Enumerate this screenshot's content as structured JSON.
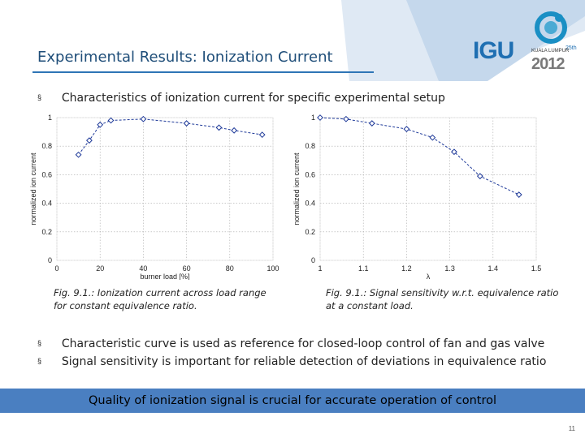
{
  "slide": {
    "title": "Experimental Results: Ionization Current",
    "bullet_top": "Characteristics of ionization current for specific experimental setup",
    "bullets_bottom": [
      "Characteristic curve is used as reference for closed-loop control of fan and gas valve",
      "Signal sensitivity is important for reliable detection of deviations in equivalence ratio"
    ],
    "bullet_marker": "§",
    "banner": "Quality of ionization signal is crucial for accurate operation of control",
    "page_number": "11",
    "colors": {
      "title": "#1f4e79",
      "banner": "#4a7fc1",
      "series": "#1f3a99"
    }
  },
  "logos": {
    "igu": {
      "mark": "IGU",
      "sub": "INTERNATIONAL GAS UNION / UNION INTERNATIONALE DE L'INDUSTRIE DU GAZ"
    },
    "wgc": {
      "place": "KUALA LUMPUR",
      "year": "2012",
      "edition": "25th"
    }
  },
  "captions": [
    [
      "Fig. 9.1.: Ionization current across load range",
      "for constant equivalence ratio."
    ],
    [
      "Fig. 9.1.: Signal sensitivity w.r.t. equivalence ratio",
      "at a constant load."
    ]
  ],
  "chart_data": [
    {
      "type": "line",
      "xlabel": "burner load [%]",
      "ylabel": "normalized ion current",
      "xlim": [
        0,
        100
      ],
      "ylim": [
        0,
        1
      ],
      "xticks": [
        0,
        20,
        40,
        60,
        80,
        100
      ],
      "yticks": [
        0,
        0.2,
        0.4,
        0.6,
        0.8,
        1
      ],
      "xtick_labels": [
        "0",
        "20",
        "40",
        "60",
        "80",
        "100"
      ],
      "ytick_labels": [
        "0",
        "0.2",
        "0.4",
        "0.6",
        "0.8",
        "1"
      ],
      "grid": true,
      "marker": "diamond",
      "line_style": "dashed",
      "series": [
        {
          "x": [
            10,
            15,
            20,
            25,
            40,
            60,
            75,
            82,
            95
          ],
          "values": [
            0.74,
            0.84,
            0.95,
            0.98,
            0.99,
            0.96,
            0.93,
            0.91,
            0.88
          ]
        }
      ]
    },
    {
      "type": "line",
      "xlabel": "λ",
      "ylabel": "normalized ion current",
      "xlim": [
        1,
        1.5
      ],
      "ylim": [
        0,
        1
      ],
      "xticks": [
        1,
        1.1,
        1.2,
        1.3,
        1.4,
        1.5
      ],
      "yticks": [
        0,
        0.2,
        0.4,
        0.6,
        0.8,
        1
      ],
      "xtick_labels": [
        "1",
        "1.1",
        "1.2",
        "1.3",
        "1.4",
        "1.5"
      ],
      "ytick_labels": [
        "0",
        "0.2",
        "0.4",
        "0.6",
        "0.8",
        "1"
      ],
      "grid": true,
      "marker": "diamond",
      "line_style": "dashed",
      "series": [
        {
          "x": [
            1.0,
            1.06,
            1.12,
            1.2,
            1.26,
            1.31,
            1.37,
            1.46
          ],
          "values": [
            1.0,
            0.99,
            0.96,
            0.92,
            0.86,
            0.76,
            0.59,
            0.46
          ]
        }
      ]
    }
  ]
}
